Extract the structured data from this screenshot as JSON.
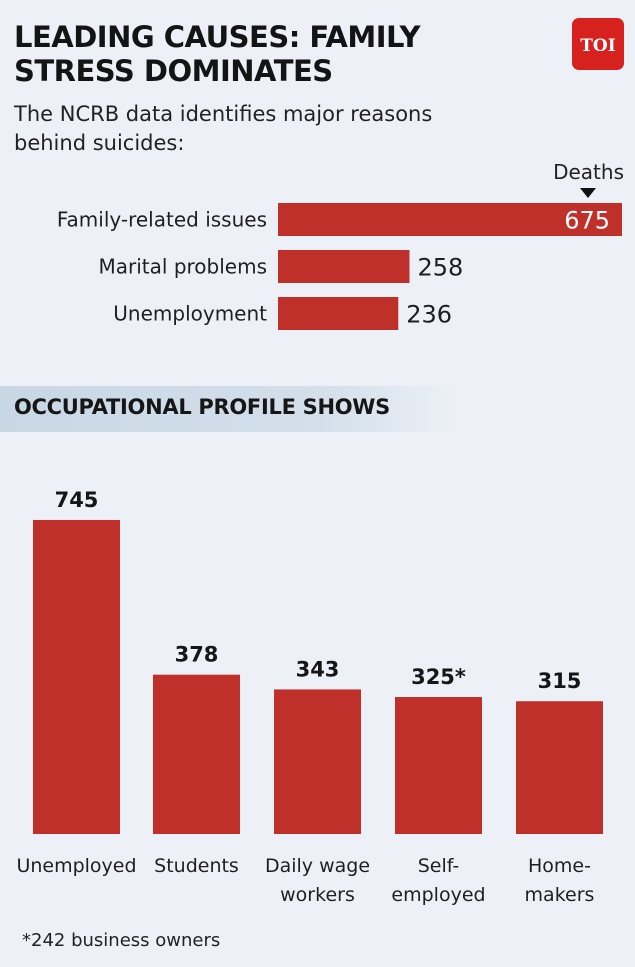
{
  "header": {
    "title_line1": "LEADING CAUSES: FAMILY",
    "title_line2": "STRESS DOMINATES",
    "logo_text": "TOI",
    "subtitle_line1": "The NCRB data identifies major reasons",
    "subtitle_line2": "behind suicides:"
  },
  "colors": {
    "bar": "#c0302b",
    "background": "#edf1f7",
    "logo": "#d6211f",
    "section_band": "#cbd8e6"
  },
  "section": {
    "occupation_title": "OCCUPATIONAL PROFILE SHOWS"
  },
  "footnote": "*242 business owners",
  "chart_data": [
    {
      "type": "bar",
      "orientation": "horizontal",
      "unit_label": "Deaths",
      "categories": [
        "Family-related issues",
        "Marital problems",
        "Unemployment"
      ],
      "values": [
        675,
        258,
        236
      ],
      "value_labels": [
        "675",
        "258",
        "236"
      ],
      "xlim": [
        0,
        675
      ]
    },
    {
      "type": "bar",
      "orientation": "vertical",
      "categories": [
        [
          "Unemployed"
        ],
        [
          "Students"
        ],
        [
          "Daily wage",
          "workers"
        ],
        [
          "Self-",
          "employed"
        ],
        [
          "Home-",
          "makers"
        ]
      ],
      "values": [
        745,
        378,
        343,
        325,
        315
      ],
      "value_labels": [
        "745",
        "378",
        "343",
        "325*",
        "315"
      ],
      "ylim": [
        0,
        745
      ]
    }
  ]
}
